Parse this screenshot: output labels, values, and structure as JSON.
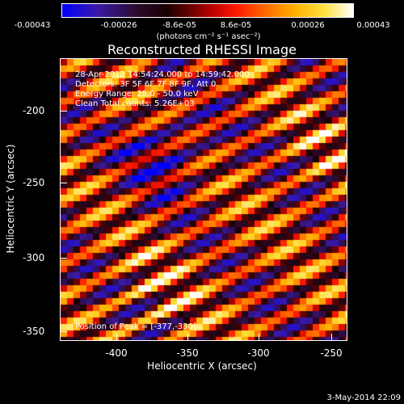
{
  "colorbar": {
    "ticks": [
      "-0.00043",
      "-0.00026",
      "-8.6e-05",
      "8.6e-05",
      "0.00026",
      "0.00043"
    ],
    "units": "(photons cm⁻² s⁻¹ asec⁻²)"
  },
  "title": "Reconstructed RHESSI Image",
  "annotations": {
    "time_range": "28-Apr-2012 14:54:24.000 to 14:59:42.000",
    "detectors": "Detectors: 3F 5F 6F 7F 8F 9F, Att 0",
    "energy": "Energy Range: 25.0 - 50.0 keV",
    "method": "Clean     Total counts: 5.26E+03",
    "peak": "Position of Peak = [-377,-330]"
  },
  "axes": {
    "xlabel": "Heliocentric X (arcsec)",
    "ylabel": "Heliocentric Y (arcsec)",
    "xticks": [
      "-400",
      "-350",
      "-300",
      "-250"
    ],
    "yticks": [
      "-200",
      "-250",
      "-300",
      "-350"
    ]
  },
  "datestamp": "3-May-2014 22:09"
}
